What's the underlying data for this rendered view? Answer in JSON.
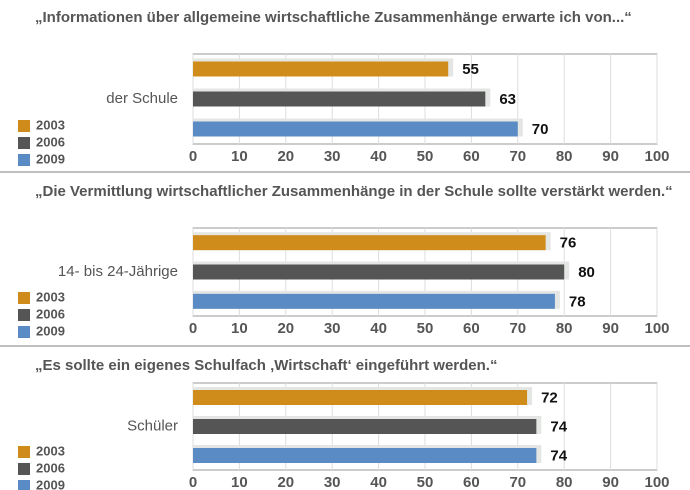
{
  "chart_data": [
    {
      "type": "bar",
      "orientation": "horizontal",
      "title": "„Informationen über allgemeine wirtschaftliche Zusammenhänge erwarte ich von...“",
      "categories": [
        "der Schule"
      ],
      "series": [
        {
          "name": "2003",
          "color": "#d08c1a",
          "values": [
            55
          ]
        },
        {
          "name": "2006",
          "color": "#555555",
          "values": [
            63
          ]
        },
        {
          "name": "2009",
          "color": "#5b8bc4",
          "values": [
            70
          ]
        }
      ],
      "xlim": [
        0,
        100
      ],
      "xticks": [
        0,
        10,
        20,
        30,
        40,
        50,
        60,
        70,
        80,
        90,
        100
      ],
      "grid": true,
      "legend": "bottom-left"
    },
    {
      "type": "bar",
      "orientation": "horizontal",
      "title": "„Die Vermittlung wirtschaftlicher Zusammenhänge in der Schule sollte verstärkt werden.“",
      "categories": [
        "14- bis 24-Jährige"
      ],
      "series": [
        {
          "name": "2003",
          "color": "#d08c1a",
          "values": [
            76
          ]
        },
        {
          "name": "2006",
          "color": "#555555",
          "values": [
            80
          ]
        },
        {
          "name": "2009",
          "color": "#5b8bc4",
          "values": [
            78
          ]
        }
      ],
      "xlim": [
        0,
        100
      ],
      "xticks": [
        0,
        10,
        20,
        30,
        40,
        50,
        60,
        70,
        80,
        90,
        100
      ],
      "grid": true,
      "legend": "bottom-left"
    },
    {
      "type": "bar",
      "orientation": "horizontal",
      "title": "„Es sollte ein eigenes Schulfach ‚Wirtschaft‘ eingeführt werden.“",
      "categories": [
        "Schüler"
      ],
      "series": [
        {
          "name": "2003",
          "color": "#d08c1a",
          "values": [
            72
          ]
        },
        {
          "name": "2006",
          "color": "#555555",
          "values": [
            74
          ]
        },
        {
          "name": "2009",
          "color": "#5b8bc4",
          "values": [
            74
          ]
        }
      ],
      "xlim": [
        0,
        100
      ],
      "xticks": [
        0,
        10,
        20,
        30,
        40,
        50,
        60,
        70,
        80,
        90,
        100
      ],
      "grid": true,
      "legend": "bottom-left"
    }
  ]
}
